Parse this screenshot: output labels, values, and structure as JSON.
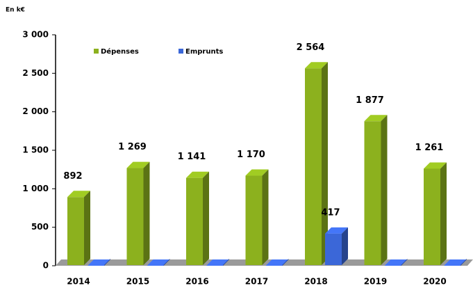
{
  "chart_data": {
    "type": "bar3d",
    "y_unit": "En k€",
    "categories": [
      "2014",
      "2015",
      "2016",
      "2017",
      "2018",
      "2019",
      "2020"
    ],
    "series": [
      {
        "name": "Dépenses",
        "color": "#8cb11e",
        "values": [
          892,
          1269,
          1141,
          1170,
          2564,
          1877,
          1261
        ],
        "value_labels": [
          "892",
          "1 269",
          "1 141",
          "1 170",
          "2 564",
          "1 877",
          "1 261"
        ]
      },
      {
        "name": "Emprunts",
        "color": "#3b67d8",
        "values": [
          0,
          0,
          0,
          0,
          417,
          0,
          0
        ],
        "value_labels": [
          null,
          null,
          null,
          null,
          "417",
          null,
          null
        ]
      }
    ],
    "ylim": [
      0,
      3000
    ],
    "yticks": [
      0,
      500,
      {
        "value": 1000,
        "label": "1 000"
      },
      {
        "value": 1500,
        "label": "1 500"
      },
      {
        "value": 2000,
        "label": "2 000"
      },
      {
        "value": 2500,
        "label": "2 500"
      },
      {
        "value": 3000,
        "label": "3 000"
      }
    ],
    "legend": "top-left"
  }
}
